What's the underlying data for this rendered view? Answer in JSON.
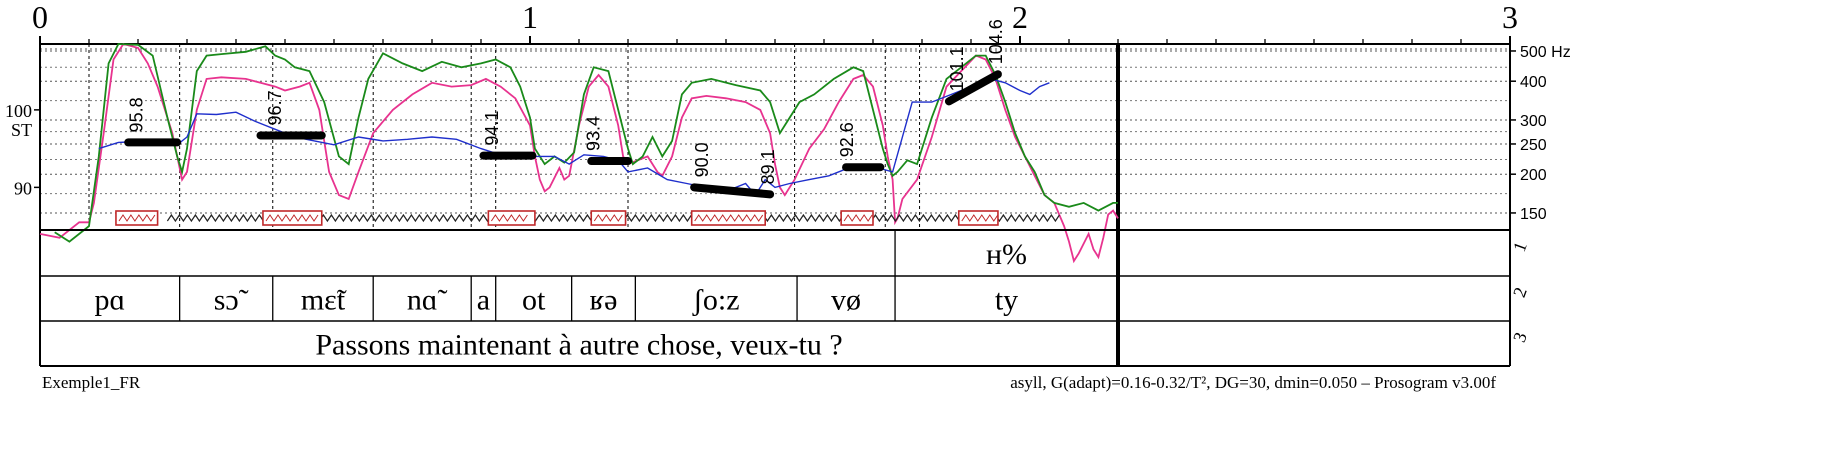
{
  "chart_data": {
    "type": "line",
    "recording": "Exemple1_FR",
    "footer_params": "asyll, G(adapt)=0.16-0.32/T², DG=30, dmin=0.050 – Prosogram v3.00f",
    "y_unit_label": "ST",
    "xlim": [
      0,
      3
    ],
    "ylim_st": [
      84.5,
      108.5
    ],
    "x_tick_labels": [
      "0",
      "1",
      "2",
      "3"
    ],
    "st_tick_labels": [
      "100",
      "90"
    ],
    "st_ticks": [
      100,
      90
    ],
    "hz_ticks": [
      {
        "value": 500,
        "label": "500 Hz",
        "st": 107.6
      },
      {
        "value": 400,
        "label": "400",
        "st": 103.7
      },
      {
        "value": 300,
        "label": "300",
        "st": 98.7
      },
      {
        "value": 250,
        "label": "250",
        "st": 95.6
      },
      {
        "value": 200,
        "label": "200",
        "st": 91.7
      },
      {
        "value": 150,
        "label": "150",
        "st": 86.7
      }
    ],
    "pitch_segments": [
      {
        "start": 0.18,
        "end": 0.28,
        "value": 95.8,
        "label": "95.8"
      },
      {
        "start": 0.45,
        "end": 0.575,
        "value": 96.7,
        "label": "96.7"
      },
      {
        "start": 0.905,
        "end": 1.005,
        "value": 94.1,
        "label": "94.1"
      },
      {
        "start": 1.125,
        "end": 1.2,
        "value": 93.4,
        "label": "93.4"
      },
      {
        "start": 1.335,
        "end": 1.49,
        "value_start": 90.0,
        "value_end": 89.1,
        "label_start": "90.0",
        "label_end": "89.1"
      },
      {
        "start": 1.645,
        "end": 1.715,
        "value": 92.6,
        "label": "92.6"
      },
      {
        "start": 1.855,
        "end": 1.955,
        "value_start": 101.1,
        "value_end": 104.6,
        "label_start": "101.1",
        "label_end": "104.6"
      }
    ],
    "nucleus_boxes": [
      {
        "start": 0.155,
        "end": 0.24
      },
      {
        "start": 0.455,
        "end": 0.575
      },
      {
        "start": 0.915,
        "end": 1.01
      },
      {
        "start": 1.125,
        "end": 1.195
      },
      {
        "start": 1.33,
        "end": 1.48
      },
      {
        "start": 1.635,
        "end": 1.7
      },
      {
        "start": 1.875,
        "end": 1.955
      }
    ],
    "vertical_dividers": [
      0.1,
      0.285,
      0.475,
      0.68,
      0.88,
      0.93,
      1.2,
      1.54,
      1.725,
      1.795
    ],
    "series": [
      {
        "color": "#e8338f",
        "points": [
          [
            0.0,
            84.0
          ],
          [
            0.04,
            83.5
          ],
          [
            0.08,
            85.5
          ],
          [
            0.1,
            85.5
          ],
          [
            0.11,
            88.0
          ],
          [
            0.13,
            97.0
          ],
          [
            0.15,
            106.5
          ],
          [
            0.17,
            108.5
          ],
          [
            0.2,
            108.0
          ],
          [
            0.22,
            106.0
          ],
          [
            0.24,
            103.0
          ],
          [
            0.27,
            97.0
          ],
          [
            0.29,
            91.0
          ],
          [
            0.3,
            92.0
          ],
          [
            0.32,
            100.0
          ],
          [
            0.34,
            104.0
          ],
          [
            0.37,
            104.2
          ],
          [
            0.42,
            104.0
          ],
          [
            0.45,
            103.5
          ],
          [
            0.48,
            103.0
          ],
          [
            0.5,
            102.5
          ],
          [
            0.53,
            103.0
          ],
          [
            0.55,
            103.5
          ],
          [
            0.57,
            100.0
          ],
          [
            0.59,
            92.0
          ],
          [
            0.61,
            89.0
          ],
          [
            0.63,
            88.5
          ],
          [
            0.65,
            92.0
          ],
          [
            0.68,
            97.0
          ],
          [
            0.72,
            100.0
          ],
          [
            0.76,
            102.0
          ],
          [
            0.8,
            103.5
          ],
          [
            0.84,
            103.0
          ],
          [
            0.88,
            103.2
          ],
          [
            0.91,
            104.0
          ],
          [
            0.94,
            103.0
          ],
          [
            0.97,
            101.5
          ],
          [
            1.0,
            98.0
          ],
          [
            1.01,
            94.0
          ],
          [
            1.02,
            91.0
          ],
          [
            1.03,
            89.5
          ],
          [
            1.04,
            90.0
          ],
          [
            1.06,
            92.5
          ],
          [
            1.07,
            91.0
          ],
          [
            1.08,
            91.5
          ],
          [
            1.1,
            98.0
          ],
          [
            1.12,
            103.0
          ],
          [
            1.14,
            104.5
          ],
          [
            1.16,
            103.0
          ],
          [
            1.18,
            98.0
          ],
          [
            1.19,
            94.0
          ],
          [
            1.2,
            93.0
          ],
          [
            1.22,
            93.5
          ],
          [
            1.24,
            94.0
          ],
          [
            1.26,
            92.0
          ],
          [
            1.27,
            91.5
          ],
          [
            1.29,
            94.0
          ],
          [
            1.31,
            99.0
          ],
          [
            1.33,
            101.5
          ],
          [
            1.36,
            101.8
          ],
          [
            1.4,
            101.5
          ],
          [
            1.44,
            101.0
          ],
          [
            1.47,
            100.0
          ],
          [
            1.49,
            97.0
          ],
          [
            1.5,
            93.0
          ],
          [
            1.51,
            90.0
          ],
          [
            1.52,
            89.0
          ],
          [
            1.54,
            91.0
          ],
          [
            1.57,
            95.0
          ],
          [
            1.6,
            97.5
          ],
          [
            1.63,
            101.0
          ],
          [
            1.66,
            104.0
          ],
          [
            1.68,
            104.5
          ],
          [
            1.7,
            103.0
          ],
          [
            1.72,
            98.0
          ],
          [
            1.73,
            94.0
          ],
          [
            1.74,
            91.0
          ],
          [
            1.745,
            85.5
          ],
          [
            1.75,
            86.0
          ],
          [
            1.76,
            88.5
          ],
          [
            1.79,
            91.0
          ],
          [
            1.82,
            96.5
          ],
          [
            1.85,
            103.0
          ],
          [
            1.88,
            105.0
          ],
          [
            1.91,
            107.0
          ],
          [
            1.93,
            106.5
          ],
          [
            1.95,
            104.0
          ],
          [
            1.97,
            100.0
          ],
          [
            1.99,
            96.5
          ],
          [
            2.01,
            94.0
          ],
          [
            2.03,
            91.5
          ],
          [
            2.05,
            89.0
          ],
          [
            2.07,
            88.0
          ],
          [
            2.09,
            85.0
          ],
          [
            2.1,
            83.0
          ],
          [
            2.11,
            80.5
          ],
          [
            2.12,
            81.5
          ],
          [
            2.14,
            84.0
          ],
          [
            2.15,
            82.0
          ],
          [
            2.16,
            81.0
          ],
          [
            2.17,
            83.5
          ],
          [
            2.18,
            86.5
          ],
          [
            2.19,
            87.0
          ],
          [
            2.2,
            86.0
          ]
        ]
      },
      {
        "color": "#1a8a1a",
        "points": [
          [
            0.03,
            84.2
          ],
          [
            0.06,
            83.0
          ],
          [
            0.1,
            85.0
          ],
          [
            0.12,
            94.0
          ],
          [
            0.14,
            106.0
          ],
          [
            0.16,
            108.5
          ],
          [
            0.2,
            108.4
          ],
          [
            0.23,
            107.0
          ],
          [
            0.26,
            99.0
          ],
          [
            0.28,
            94.0
          ],
          [
            0.29,
            92.0
          ],
          [
            0.3,
            95.0
          ],
          [
            0.32,
            105.0
          ],
          [
            0.34,
            107.0
          ],
          [
            0.37,
            107.2
          ],
          [
            0.42,
            107.5
          ],
          [
            0.46,
            108.2
          ],
          [
            0.48,
            107.0
          ],
          [
            0.5,
            106.5
          ],
          [
            0.52,
            105.5
          ],
          [
            0.55,
            105.0
          ],
          [
            0.58,
            101.0
          ],
          [
            0.61,
            94.0
          ],
          [
            0.63,
            93.0
          ],
          [
            0.65,
            99.0
          ],
          [
            0.67,
            104.0
          ],
          [
            0.7,
            107.3
          ],
          [
            0.74,
            106.0
          ],
          [
            0.78,
            105.0
          ],
          [
            0.82,
            106.2
          ],
          [
            0.86,
            105.5
          ],
          [
            0.9,
            106.0
          ],
          [
            0.93,
            106.5
          ],
          [
            0.96,
            105.5
          ],
          [
            0.98,
            103.0
          ],
          [
            1.0,
            99.0
          ],
          [
            1.01,
            95.0
          ],
          [
            1.03,
            93.0
          ],
          [
            1.05,
            94.0
          ],
          [
            1.07,
            93.2
          ],
          [
            1.09,
            94.5
          ],
          [
            1.11,
            102.0
          ],
          [
            1.13,
            105.5
          ],
          [
            1.16,
            105.0
          ],
          [
            1.18,
            100.0
          ],
          [
            1.2,
            95.0
          ],
          [
            1.21,
            93.0
          ],
          [
            1.23,
            94.0
          ],
          [
            1.25,
            96.5
          ],
          [
            1.27,
            94.0
          ],
          [
            1.29,
            96.0
          ],
          [
            1.31,
            102.0
          ],
          [
            1.33,
            103.5
          ],
          [
            1.37,
            104.0
          ],
          [
            1.42,
            103.2
          ],
          [
            1.47,
            102.5
          ],
          [
            1.49,
            101.0
          ],
          [
            1.51,
            97.0
          ],
          [
            1.52,
            98.0
          ],
          [
            1.55,
            101.0
          ],
          [
            1.58,
            102.0
          ],
          [
            1.62,
            104.0
          ],
          [
            1.66,
            105.5
          ],
          [
            1.68,
            105.0
          ],
          [
            1.7,
            100.0
          ],
          [
            1.72,
            95.0
          ],
          [
            1.73,
            93.0
          ],
          [
            1.74,
            91.5
          ],
          [
            1.75,
            92.0
          ],
          [
            1.77,
            93.5
          ],
          [
            1.79,
            93.0
          ],
          [
            1.82,
            99.0
          ],
          [
            1.85,
            104.0
          ],
          [
            1.88,
            105.5
          ],
          [
            1.91,
            107.0
          ],
          [
            1.93,
            107.0
          ],
          [
            1.95,
            104.5
          ],
          [
            1.97,
            101.0
          ],
          [
            1.99,
            97.0
          ],
          [
            2.01,
            94.0
          ],
          [
            2.03,
            92.0
          ],
          [
            2.05,
            89.0
          ],
          [
            2.07,
            88.0
          ],
          [
            2.1,
            87.5
          ],
          [
            2.13,
            88.0
          ],
          [
            2.16,
            87.0
          ],
          [
            2.19,
            88.0
          ],
          [
            2.2,
            88.0
          ]
        ]
      },
      {
        "color": "#1f2fcc",
        "points": [
          [
            0.12,
            95.0
          ],
          [
            0.16,
            95.8
          ],
          [
            0.2,
            95.9
          ],
          [
            0.24,
            95.6
          ],
          [
            0.28,
            95.5
          ],
          [
            0.3,
            96.5
          ],
          [
            0.32,
            99.5
          ],
          [
            0.36,
            99.4
          ],
          [
            0.4,
            99.7
          ],
          [
            0.44,
            98.5
          ],
          [
            0.48,
            97.5
          ],
          [
            0.52,
            96.5
          ],
          [
            0.56,
            96.0
          ],
          [
            0.6,
            95.5
          ],
          [
            0.65,
            96.5
          ],
          [
            0.7,
            96.0
          ],
          [
            0.75,
            96.2
          ],
          [
            0.8,
            96.5
          ],
          [
            0.85,
            96.2
          ],
          [
            0.9,
            95.0
          ],
          [
            0.95,
            94.0
          ],
          [
            1.0,
            94.0
          ],
          [
            1.05,
            94.0
          ],
          [
            1.08,
            93.0
          ],
          [
            1.11,
            94.2
          ],
          [
            1.15,
            94.0
          ],
          [
            1.18,
            93.5
          ],
          [
            1.2,
            92.0
          ],
          [
            1.24,
            92.5
          ],
          [
            1.28,
            91.0
          ],
          [
            1.32,
            90.5
          ],
          [
            1.36,
            90.0
          ],
          [
            1.4,
            89.5
          ],
          [
            1.44,
            90.5
          ],
          [
            1.46,
            89.0
          ],
          [
            1.48,
            91.0
          ],
          [
            1.5,
            90.0
          ],
          [
            1.53,
            90.5
          ],
          [
            1.57,
            91.0
          ],
          [
            1.61,
            91.5
          ],
          [
            1.65,
            92.5
          ],
          [
            1.7,
            92.7
          ],
          [
            1.74,
            92.0
          ],
          [
            1.78,
            101.0
          ],
          [
            1.82,
            101.0
          ],
          [
            1.86,
            102.0
          ],
          [
            1.9,
            103.0
          ],
          [
            1.94,
            104.0
          ],
          [
            1.97,
            103.5
          ],
          [
            2.0,
            102.5
          ],
          [
            2.02,
            102.0
          ],
          [
            2.04,
            103.0
          ],
          [
            2.06,
            103.5
          ]
        ]
      }
    ],
    "tiers": [
      {
        "index_label": "1",
        "intervals": [
          {
            "start": 0.0,
            "end": 1.745,
            "label": ""
          },
          {
            "start": 1.745,
            "end": 2.2,
            "label": "ʜ%"
          }
        ]
      },
      {
        "index_label": "2",
        "intervals": [
          {
            "start": 0.0,
            "end": 0.285,
            "label": "pɑ"
          },
          {
            "start": 0.285,
            "end": 0.475,
            "label": "sɔ̃"
          },
          {
            "start": 0.475,
            "end": 0.68,
            "label": "mɛ̃t"
          },
          {
            "start": 0.68,
            "end": 0.88,
            "label": "nɑ̃"
          },
          {
            "start": 0.88,
            "end": 0.93,
            "label": "a"
          },
          {
            "start": 0.93,
            "end": 1.085,
            "label": "ot"
          },
          {
            "start": 1.085,
            "end": 1.215,
            "label": "ʁə"
          },
          {
            "start": 1.215,
            "end": 1.545,
            "label": "ʃo:z"
          },
          {
            "start": 1.545,
            "end": 1.745,
            "label": "vø"
          },
          {
            "start": 1.745,
            "end": 2.2,
            "label": "ty"
          }
        ]
      },
      {
        "index_label": "3",
        "intervals": [
          {
            "start": 0.0,
            "end": 2.2,
            "label": "Passons maintenant à autre chose, veux-tu ?"
          }
        ]
      }
    ]
  }
}
